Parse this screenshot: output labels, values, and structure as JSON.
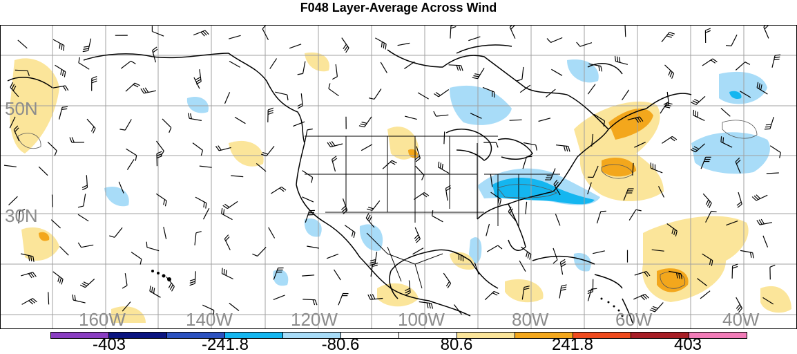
{
  "title": "F048 Layer-Average Across Wind",
  "lat_labels": [
    "50N",
    "30N"
  ],
  "lon_labels": [
    "160W",
    "140W",
    "120W",
    "100W",
    "80W",
    "60W",
    "40W"
  ],
  "colorbar": {
    "labels": [
      "-403",
      "-241.8",
      "-80.6",
      "80.6",
      "241.8",
      "403"
    ],
    "colors": [
      "#8a3ec2",
      "#0a1480",
      "#2c52c0",
      "#14b6f0",
      "#a8dcf8",
      "#ffffff",
      "#ffffff",
      "#fbe59a",
      "#f3a71c",
      "#ef4b1e",
      "#a81e26",
      "#f27cb8"
    ]
  }
}
